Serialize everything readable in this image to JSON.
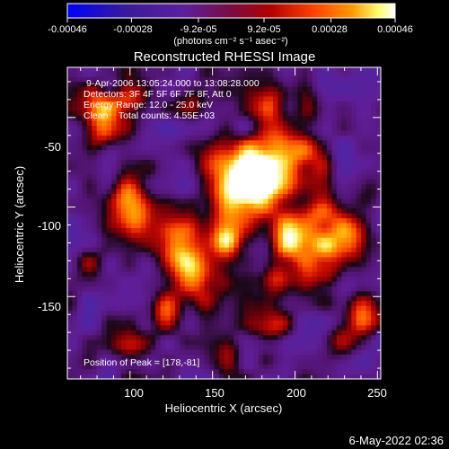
{
  "chart_data": {
    "type": "heatmap",
    "title": "Reconstructed RHESSI Image",
    "xlabel": "Heliocentric X (arcsec)",
    "ylabel": "Heliocentric Y (arcsec)",
    "xlim": [
      62,
      252
    ],
    "ylim": [
      -196,
      -22
    ],
    "xticks": [
      100,
      150,
      200,
      250
    ],
    "yticks": [
      -50,
      -100,
      -150
    ],
    "colorbar": {
      "ticks": [
        -0.00046,
        -0.00028,
        -9.2e-05,
        9.2e-05,
        0.00028,
        0.00046
      ],
      "tick_labels": [
        "-0.00046",
        "-0.00028",
        "-9.2e-05",
        "9.2e-05",
        "0.00028",
        "0.00046"
      ],
      "units": "(photons cm⁻² s⁻¹ asec⁻²)",
      "colors": [
        "#0000ff",
        "#3a1a9a",
        "#5a20a0",
        "#7a0c40",
        "#b40000",
        "#ff4000",
        "#ff9a00",
        "#ffff70",
        "#ffffff"
      ]
    },
    "annotations": [
      "9-Apr-2006 13:05:24.000 to 13:08:28.000",
      "Detectors: 3F 4F 5F 6F 7F 8F, Att 0",
      "Energy Range: 12.0 - 25.0 keV",
      "Clean    Total counts: 4.55E+03",
      "Position of Peak = [178,-81]"
    ],
    "peak": [
      178,
      -81
    ],
    "blobs": [
      {
        "x": 178,
        "y": -81,
        "w": 1.0,
        "r": 16
      },
      {
        "x": 165,
        "y": -95,
        "w": 0.85,
        "r": 22
      },
      {
        "x": 188,
        "y": -60,
        "w": 0.55,
        "r": 14
      },
      {
        "x": 205,
        "y": -75,
        "w": 0.6,
        "r": 14
      },
      {
        "x": 200,
        "y": -118,
        "w": 0.9,
        "r": 15
      },
      {
        "x": 216,
        "y": -105,
        "w": 0.55,
        "r": 12
      },
      {
        "x": 232,
        "y": -118,
        "w": 0.85,
        "r": 14
      },
      {
        "x": 218,
        "y": -135,
        "w": 0.6,
        "r": 12
      },
      {
        "x": 130,
        "y": -122,
        "w": 0.85,
        "r": 14
      },
      {
        "x": 140,
        "y": -140,
        "w": 0.7,
        "r": 14
      },
      {
        "x": 120,
        "y": -160,
        "w": 0.55,
        "r": 12
      },
      {
        "x": 98,
        "y": -95,
        "w": 0.65,
        "r": 12
      },
      {
        "x": 105,
        "y": -108,
        "w": 0.55,
        "r": 12
      },
      {
        "x": 82,
        "y": -45,
        "w": 0.75,
        "r": 12
      },
      {
        "x": 100,
        "y": -40,
        "w": 0.6,
        "r": 10
      },
      {
        "x": 85,
        "y": -60,
        "w": 0.55,
        "r": 10
      },
      {
        "x": 185,
        "y": -40,
        "w": 0.5,
        "r": 12
      },
      {
        "x": 150,
        "y": -70,
        "w": 0.4,
        "r": 12
      },
      {
        "x": 240,
        "y": -160,
        "w": 0.55,
        "r": 12
      },
      {
        "x": 228,
        "y": -175,
        "w": 0.45,
        "r": 10
      },
      {
        "x": 185,
        "y": -168,
        "w": 0.5,
        "r": 12
      },
      {
        "x": 160,
        "y": -185,
        "w": 0.4,
        "r": 10
      },
      {
        "x": 100,
        "y": -180,
        "w": 0.45,
        "r": 12
      },
      {
        "x": 75,
        "y": -130,
        "w": 0.35,
        "r": 10
      },
      {
        "x": 140,
        "y": -40,
        "w": 0.35,
        "r": 12
      },
      {
        "x": 212,
        "y": -45,
        "w": 0.35,
        "r": 10
      },
      {
        "x": 158,
        "y": -118,
        "w": 0.6,
        "r": 10
      },
      {
        "x": 244,
        "y": -90,
        "w": 0.45,
        "r": 10
      },
      {
        "x": 190,
        "y": -140,
        "w": 0.55,
        "r": 10
      }
    ]
  },
  "footer": {
    "timestamp": "6-May-2022 02:36"
  }
}
